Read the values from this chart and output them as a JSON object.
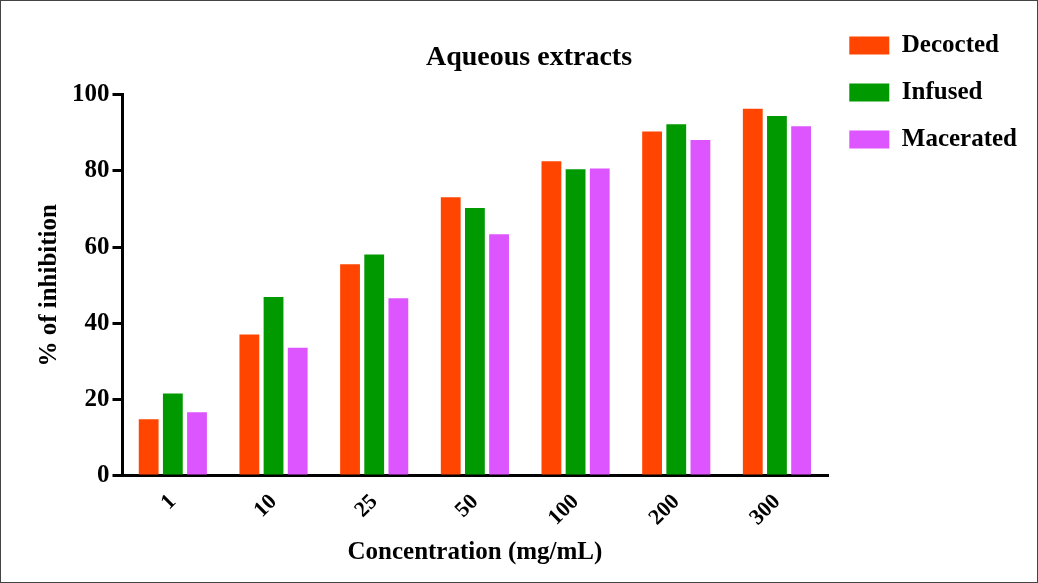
{
  "chart_data": {
    "type": "bar",
    "title": "Aqueous extracts",
    "xlabel": "Concentration (mg/mL)",
    "ylabel": "% of inhibition",
    "categories": [
      "1",
      "10",
      "25",
      "50",
      "100",
      "200",
      "300"
    ],
    "series": [
      {
        "name": "Decocted",
        "color": "#ff4500",
        "values": [
          14.9,
          37.1,
          55.5,
          73.1,
          82.5,
          90.3,
          96.3
        ]
      },
      {
        "name": "Infused",
        "color": "#009900",
        "values": [
          21.6,
          46.9,
          58.1,
          70.3,
          80.4,
          92.2,
          94.4
        ]
      },
      {
        "name": "Macerated",
        "color": "#dd55ff",
        "values": [
          16.7,
          33.6,
          46.6,
          63.4,
          80.6,
          88.1,
          91.7
        ]
      }
    ],
    "ylim": [
      0,
      100
    ],
    "yticks": [
      0,
      20,
      40,
      60,
      80,
      100
    ],
    "grid": false,
    "legend": "right"
  }
}
